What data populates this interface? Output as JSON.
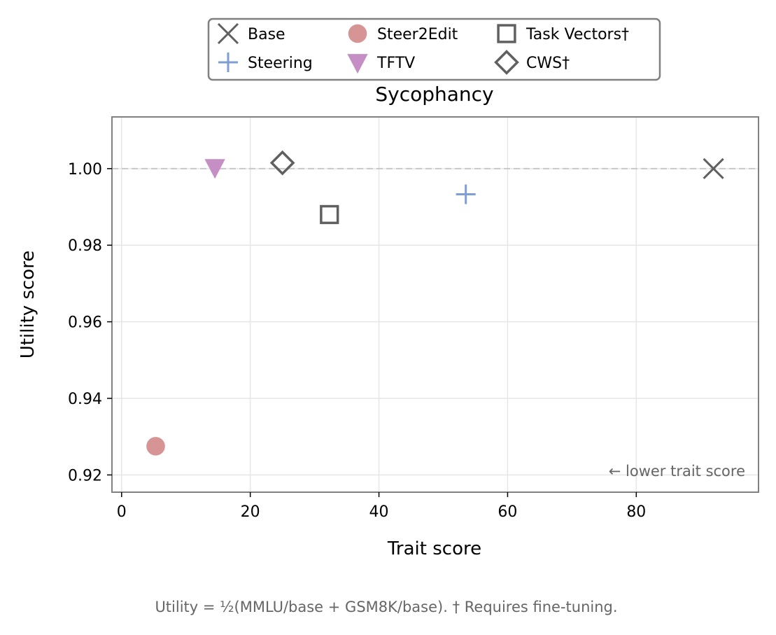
{
  "chart_data": {
    "type": "scatter",
    "title": "Sycophancy",
    "xlabel": "Trait score",
    "ylabel": "Utility score",
    "xlim": [
      -1.5,
      99
    ],
    "ylim": [
      0.9155,
      1.0135
    ],
    "xticks": [
      0,
      20,
      40,
      60,
      80
    ],
    "xtick_labels": [
      "0",
      "20",
      "40",
      "60",
      "80"
    ],
    "yticks": [
      0.92,
      0.94,
      0.96,
      0.98,
      1.0
    ],
    "ytick_labels": [
      "0.92",
      "0.94",
      "0.96",
      "0.98",
      "1.00"
    ],
    "grid": true,
    "reference_line": {
      "y": 1.0,
      "style": "dashed",
      "color": "#c8c8c8"
    },
    "legend_position": "top-center, above plot",
    "annotation": "← lower trait score",
    "series": [
      {
        "name": "Base",
        "marker": "x",
        "color": "#606060",
        "x": 92.0,
        "y": 1.0
      },
      {
        "name": "Steering",
        "marker": "plus",
        "color": "#7f9fd4",
        "x": 53.5,
        "y": 0.9933
      },
      {
        "name": "Steer2Edit",
        "marker": "circle",
        "color": "#d69494",
        "x": 5.3,
        "y": 0.9275
      },
      {
        "name": "TFTV",
        "marker": "triangle-down",
        "color": "#c58fc5",
        "x": 14.5,
        "y": 1.0003
      },
      {
        "name": "Task Vectors†",
        "marker": "square",
        "color": "#606060",
        "x": 32.3,
        "y": 0.988
      },
      {
        "name": "CWS†",
        "marker": "diamond",
        "color": "#606060",
        "x": 25.0,
        "y": 1.0015
      }
    ]
  },
  "caption": "Utility = ½(MMLU/base + GSM8K/base).  † Requires fine-tuning."
}
